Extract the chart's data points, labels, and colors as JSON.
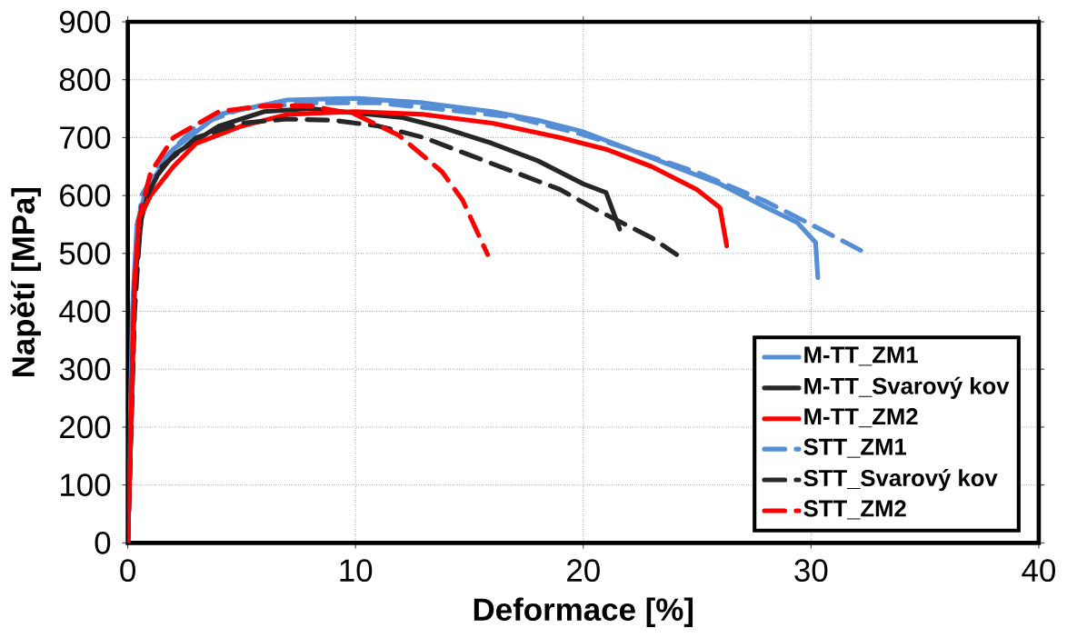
{
  "chart_data": {
    "type": "line",
    "xlabel": "Deformace [%]",
    "ylabel": "Napětí [MPa]",
    "xlim": [
      0,
      40
    ],
    "ylim": [
      0,
      900
    ],
    "xticks": [
      0,
      10,
      20,
      30,
      40
    ],
    "yticks": [
      0,
      100,
      200,
      300,
      400,
      500,
      600,
      700,
      800,
      900
    ],
    "grid": true,
    "legend": "bottom right",
    "marker": "none",
    "series": [
      {
        "name": "M-TT_ZM1",
        "color": "#558ed5",
        "line_style": "solid",
        "x": [
          0,
          0.2,
          0.4,
          0.8,
          2,
          4,
          7,
          10,
          13,
          16,
          18,
          20,
          22,
          24,
          26,
          28,
          29.4,
          30.2,
          30.3
        ],
        "values": [
          0,
          400,
          550,
          610,
          680,
          740,
          765,
          768,
          760,
          745,
          730,
          710,
          680,
          650,
          620,
          580,
          553,
          519,
          458
        ]
      },
      {
        "name": "M-TT_Svarový kov",
        "color": "#262626",
        "line_style": "solid",
        "x": [
          0,
          0.3,
          0.6,
          1,
          2,
          4,
          6,
          8,
          12,
          14,
          16,
          18,
          20,
          21,
          21.6
        ],
        "values": [
          0,
          450,
          560,
          620,
          670,
          720,
          745,
          750,
          735,
          715,
          690,
          660,
          620,
          605,
          542
        ]
      },
      {
        "name": "M-TT_ZM2",
        "color": "#ff0000",
        "line_style": "solid",
        "x": [
          0,
          0.3,
          0.5,
          1,
          2,
          3,
          5,
          7,
          10,
          13,
          16,
          19,
          21,
          23,
          25,
          26,
          26.3
        ],
        "values": [
          0,
          450,
          560,
          600,
          650,
          690,
          720,
          740,
          745,
          740,
          725,
          700,
          680,
          650,
          610,
          579,
          513
        ]
      },
      {
        "name": "STT_ZM1",
        "color": "#558ed5",
        "line_style": "dashed",
        "x": [
          0,
          0.3,
          0.6,
          1.5,
          3,
          5,
          8,
          11,
          14,
          17,
          20,
          22,
          25,
          28,
          30,
          32.2
        ],
        "values": [
          0,
          450,
          600,
          660,
          720,
          750,
          760,
          760,
          748,
          735,
          705,
          680,
          640,
          590,
          550,
          505
        ]
      },
      {
        "name": "STT_Svarový kov",
        "color": "#262626",
        "line_style": "dashed",
        "x": [
          0,
          0.3,
          0.6,
          1.5,
          3,
          5,
          7,
          9,
          11,
          13,
          15,
          17,
          19,
          20.5,
          23,
          24.1
        ],
        "values": [
          0,
          400,
          580,
          650,
          700,
          725,
          732,
          730,
          720,
          700,
          670,
          640,
          610,
          577,
          527,
          498
        ]
      },
      {
        "name": "STT_ZM2",
        "color": "#ff0000",
        "line_style": "dashed",
        "x": [
          0,
          0.3,
          0.5,
          1,
          2,
          4,
          6,
          8,
          10,
          11.9,
          13.8,
          14.7,
          15.8
        ],
        "values": [
          0,
          450,
          560,
          640,
          700,
          745,
          755,
          755,
          740,
          704,
          641,
          592,
          498
        ]
      }
    ]
  }
}
